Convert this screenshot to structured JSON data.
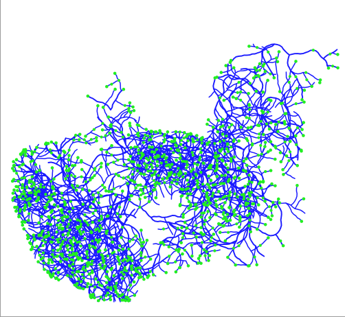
{
  "colors": {
    "background": "#ffffff",
    "river": "#1a1aff",
    "node": "#22ee22",
    "frame": "#9a9a9a"
  }
}
